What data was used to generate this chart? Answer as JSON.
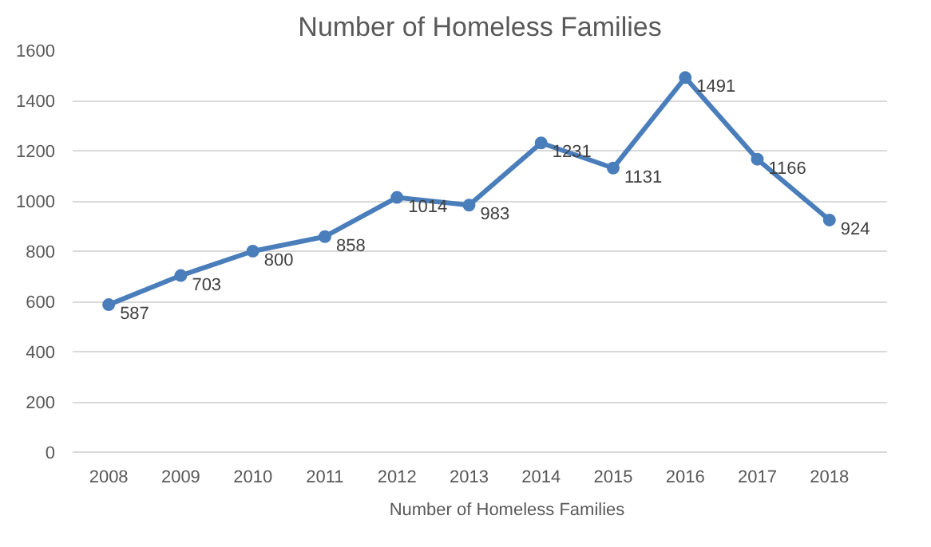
{
  "chart_data": {
    "type": "line",
    "title": "Number of Homeless Families",
    "categories": [
      "2008",
      "2009",
      "2010",
      "2011",
      "2012",
      "2013",
      "2014",
      "2015",
      "2016",
      "2017",
      "2018"
    ],
    "series": [
      {
        "name": "Number of Homeless Families",
        "color": "#4a7ebb",
        "values": [
          587,
          703,
          800,
          858,
          1014,
          983,
          1231,
          1131,
          1491,
          1166,
          924
        ]
      }
    ],
    "ylim": [
      0,
      1600
    ],
    "yticks": [
      0,
      200,
      400,
      600,
      800,
      1000,
      1200,
      1400,
      1600
    ],
    "grid": "y",
    "legend": "bottom",
    "marker": "circle",
    "line_style": "solid",
    "data_labels": true
  }
}
